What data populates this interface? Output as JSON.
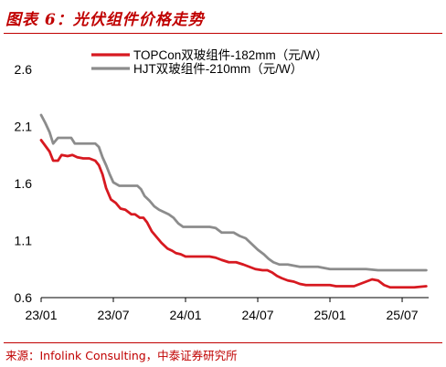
{
  "figure": {
    "title": "图表 6：光伏组件价格走势",
    "source": "来源：Infolink Consulting，中泰证券研究所"
  },
  "chart_data": {
    "type": "line",
    "xlabel": "",
    "ylabel": "",
    "ylim": [
      0.6,
      2.6
    ],
    "yticks": [
      "0.6",
      "1.1",
      "1.6",
      "2.1",
      "2.6"
    ],
    "xticks": [
      {
        "label": "23/01",
        "month": 0
      },
      {
        "label": "23/07",
        "month": 6
      },
      {
        "label": "24/01",
        "month": 12
      },
      {
        "label": "24/07",
        "month": 18
      },
      {
        "label": "25/01",
        "month": 24
      },
      {
        "label": "25/07",
        "month": 30
      }
    ],
    "x_range_months": [
      0,
      32.2
    ],
    "grid": false,
    "legend_position": "top",
    "series": [
      {
        "name": "TOPCon双玻组件-182mm（元/W）",
        "color": "#d71920",
        "points": [
          [
            0,
            1.98
          ],
          [
            0.35,
            1.93
          ],
          [
            0.7,
            1.88
          ],
          [
            1.0,
            1.8
          ],
          [
            1.4,
            1.8
          ],
          [
            1.7,
            1.85
          ],
          [
            2.2,
            1.84
          ],
          [
            2.6,
            1.85
          ],
          [
            3.0,
            1.83
          ],
          [
            3.5,
            1.82
          ],
          [
            4.0,
            1.82
          ],
          [
            4.5,
            1.8
          ],
          [
            4.8,
            1.76
          ],
          [
            5.1,
            1.68
          ],
          [
            5.4,
            1.56
          ],
          [
            5.8,
            1.46
          ],
          [
            6.2,
            1.43
          ],
          [
            6.6,
            1.38
          ],
          [
            7.0,
            1.37
          ],
          [
            7.5,
            1.33
          ],
          [
            7.8,
            1.33
          ],
          [
            8.2,
            1.3
          ],
          [
            8.5,
            1.3
          ],
          [
            8.8,
            1.26
          ],
          [
            9.2,
            1.18
          ],
          [
            9.6,
            1.13
          ],
          [
            10.0,
            1.08
          ],
          [
            10.5,
            1.03
          ],
          [
            10.9,
            1.01
          ],
          [
            11.2,
            0.99
          ],
          [
            11.6,
            0.98
          ],
          [
            12.0,
            0.96
          ],
          [
            13.0,
            0.96
          ],
          [
            14.0,
            0.96
          ],
          [
            14.5,
            0.95
          ],
          [
            15.0,
            0.93
          ],
          [
            15.6,
            0.91
          ],
          [
            16.2,
            0.91
          ],
          [
            16.8,
            0.89
          ],
          [
            17.3,
            0.87
          ],
          [
            17.8,
            0.85
          ],
          [
            18.4,
            0.84
          ],
          [
            18.8,
            0.84
          ],
          [
            19.2,
            0.82
          ],
          [
            19.6,
            0.79
          ],
          [
            20.0,
            0.77
          ],
          [
            20.5,
            0.75
          ],
          [
            21.0,
            0.74
          ],
          [
            21.5,
            0.72
          ],
          [
            22.0,
            0.71
          ],
          [
            23.0,
            0.71
          ],
          [
            24.0,
            0.71
          ],
          [
            24.5,
            0.7
          ],
          [
            25.0,
            0.7
          ],
          [
            26.0,
            0.7
          ],
          [
            26.5,
            0.72
          ],
          [
            27.0,
            0.74
          ],
          [
            27.5,
            0.76
          ],
          [
            28.0,
            0.75
          ],
          [
            28.5,
            0.71
          ],
          [
            29.0,
            0.69
          ],
          [
            30.0,
            0.69
          ],
          [
            31.0,
            0.69
          ],
          [
            32.0,
            0.7
          ]
        ]
      },
      {
        "name": "HJT双玻组件-210mm（元/W）",
        "color": "#8c8c8c",
        "points": [
          [
            0,
            2.2
          ],
          [
            0.35,
            2.13
          ],
          [
            0.7,
            2.05
          ],
          [
            1.0,
            1.95
          ],
          [
            1.4,
            2.0
          ],
          [
            2.0,
            2.0
          ],
          [
            2.5,
            2.0
          ],
          [
            2.8,
            1.95
          ],
          [
            3.5,
            1.95
          ],
          [
            4.0,
            1.95
          ],
          [
            4.5,
            1.95
          ],
          [
            4.8,
            1.92
          ],
          [
            5.1,
            1.83
          ],
          [
            5.4,
            1.76
          ],
          [
            5.7,
            1.68
          ],
          [
            6.0,
            1.61
          ],
          [
            6.5,
            1.58
          ],
          [
            7.0,
            1.58
          ],
          [
            7.5,
            1.58
          ],
          [
            8.0,
            1.58
          ],
          [
            8.3,
            1.55
          ],
          [
            8.6,
            1.49
          ],
          [
            9.0,
            1.45
          ],
          [
            9.4,
            1.4
          ],
          [
            9.8,
            1.37
          ],
          [
            10.2,
            1.35
          ],
          [
            10.6,
            1.33
          ],
          [
            11.0,
            1.3
          ],
          [
            11.4,
            1.25
          ],
          [
            11.8,
            1.22
          ],
          [
            12.5,
            1.22
          ],
          [
            13.0,
            1.22
          ],
          [
            14.0,
            1.22
          ],
          [
            14.5,
            1.21
          ],
          [
            15.0,
            1.17
          ],
          [
            15.5,
            1.17
          ],
          [
            16.0,
            1.17
          ],
          [
            16.5,
            1.14
          ],
          [
            17.0,
            1.12
          ],
          [
            17.5,
            1.07
          ],
          [
            18.0,
            1.02
          ],
          [
            18.5,
            0.98
          ],
          [
            18.9,
            0.94
          ],
          [
            19.3,
            0.91
          ],
          [
            19.8,
            0.89
          ],
          [
            20.5,
            0.89
          ],
          [
            21.0,
            0.88
          ],
          [
            21.5,
            0.87
          ],
          [
            22.0,
            0.87
          ],
          [
            23.0,
            0.87
          ],
          [
            23.5,
            0.86
          ],
          [
            24.0,
            0.85
          ],
          [
            25.0,
            0.85
          ],
          [
            26.0,
            0.85
          ],
          [
            27.0,
            0.85
          ],
          [
            28.0,
            0.84
          ],
          [
            29.0,
            0.84
          ],
          [
            30.0,
            0.84
          ],
          [
            31.0,
            0.84
          ],
          [
            32.0,
            0.84
          ]
        ]
      }
    ]
  }
}
